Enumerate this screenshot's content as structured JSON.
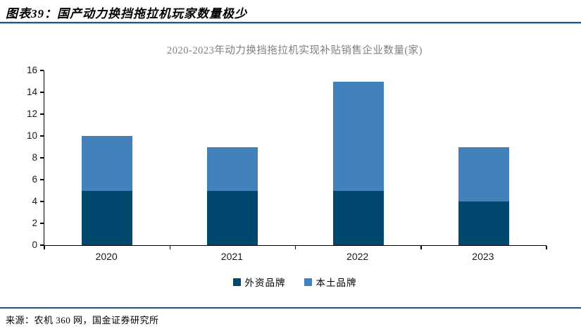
{
  "header": {
    "title": "图表39：国产动力换挡拖拉机玩家数量极少"
  },
  "chart_data": {
    "type": "bar",
    "stacked": true,
    "title": "2020-2023年动力换挡拖拉机实现补贴销售企业数量(家)",
    "categories": [
      "2020",
      "2021",
      "2022",
      "2023"
    ],
    "series": [
      {
        "name": "外资品牌",
        "color": "#00486E",
        "values": [
          5,
          5,
          5,
          4
        ]
      },
      {
        "name": "本土品牌",
        "color": "#4381BD",
        "values": [
          5,
          4,
          10,
          5
        ]
      }
    ],
    "totals": [
      10,
      9,
      15,
      9
    ],
    "ylim": [
      0,
      16
    ],
    "yticks": [
      0,
      2,
      4,
      6,
      8,
      10,
      12,
      14,
      16
    ],
    "xlabel": "",
    "ylabel": "",
    "grid": false,
    "legend_position": "bottom"
  },
  "footer": {
    "source": "来源：农机 360 网，国金证券研究所"
  },
  "colors": {
    "rule_blue": "#1e5a8c",
    "title_gray": "#7f7f7f",
    "axis_black": "#000000"
  }
}
